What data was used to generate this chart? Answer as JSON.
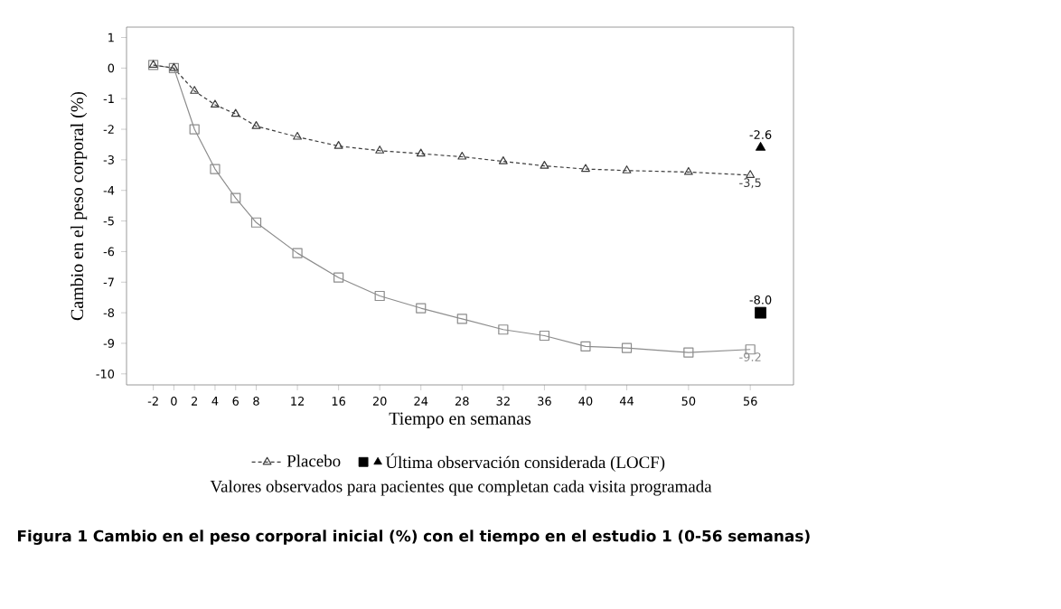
{
  "chart_data": {
    "type": "line",
    "xlabel": "Tiempo en semanas",
    "ylabel": "Cambio en el peso corporal (%)",
    "annotations": [
      "Valores observados para pacientes que completan cada visita programada",
      "Figura 1 Cambio en el peso corporal inicial (%) con el tiempo en el estudio 1 (0-56 semanas)"
    ],
    "x": [
      -2,
      0,
      2,
      4,
      6,
      8,
      12,
      16,
      20,
      24,
      28,
      32,
      36,
      40,
      44,
      50,
      56
    ],
    "series": [
      {
        "color": "#8c8c8c",
        "marker": "square",
        "line_style": "solid",
        "values": [
          0.1,
          0,
          -2.0,
          -3.3,
          -4.25,
          -5.05,
          -6.05,
          -6.85,
          -7.45,
          -7.85,
          -8.2,
          -8.55,
          -8.75,
          -9.1,
          -9.15,
          -9.3,
          -9.2
        ],
        "value_labels": [
          null,
          null,
          null,
          null,
          null,
          null,
          null,
          null,
          null,
          null,
          null,
          null,
          null,
          null,
          null,
          null,
          "-9.2"
        ]
      },
      {
        "name": "Placebo",
        "color": "#3c3c3c",
        "marker": "triangle",
        "line_style": "dashed",
        "values": [
          0.1,
          0,
          -0.75,
          -1.2,
          -1.5,
          -1.9,
          -2.25,
          -2.55,
          -2.7,
          -2.8,
          -2.9,
          -3.05,
          -3.2,
          -3.3,
          -3.35,
          -3.4,
          -3.5
        ],
        "value_labels": [
          null,
          null,
          null,
          null,
          null,
          null,
          null,
          null,
          null,
          null,
          null,
          null,
          null,
          null,
          null,
          null,
          "-3,5"
        ]
      },
      {
        "type": "scatter",
        "color": "#000000",
        "marker": "square",
        "x": [
          57
        ],
        "values": [
          -8.0
        ],
        "value_labels": [
          "-8.0"
        ]
      },
      {
        "type": "scatter",
        "name": "Última observación considerada (LOCF)",
        "color": "#000000",
        "marker": "triangle",
        "x": [
          57
        ],
        "values": [
          -2.6
        ],
        "value_labels": [
          "-2.6"
        ]
      }
    ],
    "xlim": [
      -4.6,
      60.2
    ],
    "ylim": [
      -10.36,
      1.34
    ],
    "xticks": [
      -2,
      0,
      2,
      4,
      6,
      8,
      12,
      16,
      20,
      24,
      28,
      32,
      36,
      40,
      44,
      50,
      56
    ],
    "yticks": [
      -10,
      -9,
      -8,
      -7,
      -6,
      -5,
      -4,
      -3,
      -2,
      -1,
      0,
      1
    ],
    "legend": "bottom",
    "grid": false
  }
}
